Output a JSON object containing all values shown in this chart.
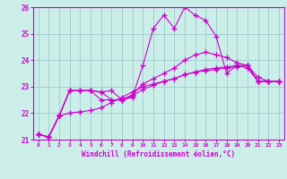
{
  "xlabel": "Windchill (Refroidissement éolien,°C)",
  "background_color": "#cceee8",
  "line_color": "#cc00cc",
  "grid_color": "#99cccc",
  "x_values": [
    0,
    1,
    2,
    3,
    4,
    5,
    6,
    7,
    8,
    9,
    10,
    11,
    12,
    13,
    14,
    15,
    16,
    17,
    18,
    19,
    20,
    21,
    22,
    23
  ],
  "xlim": [
    -0.5,
    23.5
  ],
  "ylim": [
    21,
    26
  ],
  "yticks": [
    21,
    22,
    23,
    24,
    25,
    26
  ],
  "curve1": [
    21.2,
    21.1,
    21.9,
    22.85,
    22.85,
    22.85,
    22.8,
    22.85,
    22.5,
    22.6,
    23.8,
    25.2,
    25.7,
    25.2,
    26.0,
    25.7,
    25.5,
    24.9,
    23.5,
    23.8,
    23.7,
    23.2,
    23.2,
    23.2
  ],
  "curve2": [
    21.2,
    21.1,
    21.9,
    22.85,
    22.85,
    22.85,
    22.8,
    22.5,
    22.5,
    22.7,
    23.1,
    23.3,
    23.5,
    23.7,
    24.0,
    24.2,
    24.3,
    24.2,
    24.1,
    23.9,
    23.8,
    23.35,
    23.2,
    23.2
  ],
  "curve3": [
    21.2,
    21.1,
    21.9,
    22.85,
    22.85,
    22.85,
    22.5,
    22.5,
    22.5,
    22.65,
    22.9,
    23.05,
    23.2,
    23.3,
    23.45,
    23.55,
    23.65,
    23.7,
    23.75,
    23.8,
    23.8,
    23.2,
    23.2,
    23.2
  ],
  "curve4": [
    21.2,
    21.1,
    21.9,
    22.0,
    22.05,
    22.1,
    22.2,
    22.4,
    22.6,
    22.8,
    23.0,
    23.1,
    23.2,
    23.3,
    23.45,
    23.55,
    23.6,
    23.65,
    23.7,
    23.75,
    23.8,
    23.2,
    23.2,
    23.2
  ]
}
